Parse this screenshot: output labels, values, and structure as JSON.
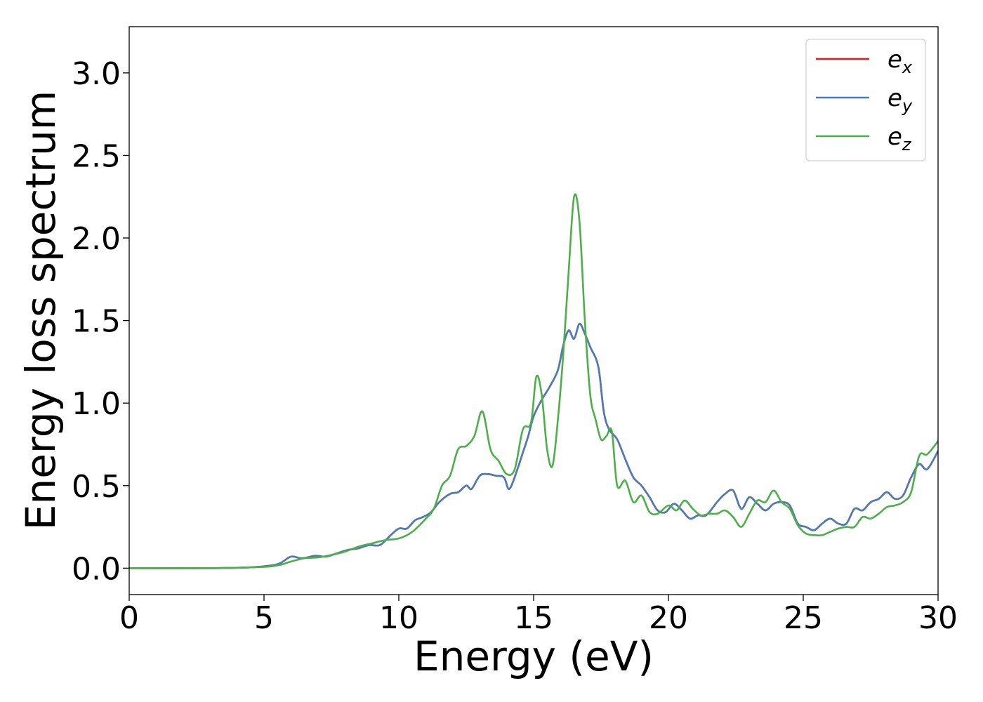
{
  "chart_data": {
    "type": "line",
    "title": "",
    "xlabel": "Energy (eV)",
    "ylabel": "Energy loss spectrum",
    "xlim": [
      0,
      30
    ],
    "ylim": [
      -0.16,
      3.28
    ],
    "xticks": [
      0,
      5,
      10,
      15,
      20,
      25,
      30
    ],
    "xtick_labels": [
      "0",
      "5",
      "10",
      "15",
      "20",
      "25",
      "30"
    ],
    "yticks": [
      0.0,
      0.5,
      1.0,
      1.5,
      2.0,
      2.5,
      3.0
    ],
    "ytick_labels": [
      "0.0",
      "0.5",
      "1.0",
      "1.5",
      "2.0",
      "2.5",
      "3.0"
    ],
    "grid": false,
    "legend": {
      "position": "top-right"
    },
    "series": [
      {
        "name": "e",
        "subscript": "x",
        "color": "#e41a1c",
        "x": [
          0,
          3,
          4.5,
          5.2,
          5.6,
          6.0,
          6.4,
          6.9,
          7.3,
          7.7,
          8.1,
          8.5,
          8.9,
          9.3,
          9.7,
          10.0,
          10.3,
          10.6,
          10.9,
          11.2,
          11.5,
          11.9,
          12.2,
          12.5,
          12.7,
          13.0,
          13.3,
          13.6,
          13.9,
          14.1,
          14.4,
          14.6,
          14.8,
          15.0,
          15.3,
          15.6,
          15.9,
          16.1,
          16.3,
          16.5,
          16.7,
          16.9,
          17.1,
          17.4,
          17.6,
          17.8,
          18.1,
          18.4,
          18.7,
          19.0,
          19.3,
          19.6,
          19.9,
          20.2,
          20.5,
          20.8,
          21.1,
          21.4,
          21.8,
          22.1,
          22.4,
          22.7,
          23.0,
          23.3,
          23.6,
          23.9,
          24.2,
          24.5,
          24.8,
          25.1,
          25.4,
          25.7,
          26.0,
          26.3,
          26.6,
          26.9,
          27.2,
          27.5,
          27.8,
          28.1,
          28.4,
          28.7,
          29.0,
          29.3,
          29.6,
          30.0
        ],
        "y": [
          0.0,
          0.0,
          0.005,
          0.015,
          0.03,
          0.07,
          0.06,
          0.075,
          0.07,
          0.09,
          0.11,
          0.12,
          0.14,
          0.14,
          0.2,
          0.24,
          0.24,
          0.29,
          0.31,
          0.34,
          0.4,
          0.45,
          0.46,
          0.5,
          0.48,
          0.56,
          0.57,
          0.56,
          0.55,
          0.48,
          0.6,
          0.7,
          0.8,
          0.92,
          1.02,
          1.1,
          1.2,
          1.35,
          1.44,
          1.39,
          1.48,
          1.42,
          1.34,
          1.22,
          0.95,
          0.84,
          0.78,
          0.66,
          0.55,
          0.5,
          0.43,
          0.35,
          0.34,
          0.39,
          0.35,
          0.3,
          0.32,
          0.32,
          0.4,
          0.45,
          0.47,
          0.36,
          0.43,
          0.39,
          0.35,
          0.39,
          0.4,
          0.38,
          0.27,
          0.25,
          0.23,
          0.27,
          0.3,
          0.27,
          0.27,
          0.36,
          0.35,
          0.4,
          0.42,
          0.46,
          0.42,
          0.44,
          0.55,
          0.63,
          0.6,
          0.71
        ]
      },
      {
        "name": "e",
        "subscript": "y",
        "color": "#4a7db8",
        "x": [
          0,
          3,
          4.5,
          5.2,
          5.6,
          6.0,
          6.4,
          6.9,
          7.3,
          7.7,
          8.1,
          8.5,
          8.9,
          9.3,
          9.7,
          10.0,
          10.3,
          10.6,
          10.9,
          11.2,
          11.5,
          11.9,
          12.2,
          12.5,
          12.7,
          13.0,
          13.3,
          13.6,
          13.9,
          14.1,
          14.4,
          14.6,
          14.8,
          15.0,
          15.3,
          15.6,
          15.9,
          16.1,
          16.3,
          16.5,
          16.7,
          16.9,
          17.1,
          17.4,
          17.6,
          17.8,
          18.1,
          18.4,
          18.7,
          19.0,
          19.3,
          19.6,
          19.9,
          20.2,
          20.5,
          20.8,
          21.1,
          21.4,
          21.8,
          22.1,
          22.4,
          22.7,
          23.0,
          23.3,
          23.6,
          23.9,
          24.2,
          24.5,
          24.8,
          25.1,
          25.4,
          25.7,
          26.0,
          26.3,
          26.6,
          26.9,
          27.2,
          27.5,
          27.8,
          28.1,
          28.4,
          28.7,
          29.0,
          29.3,
          29.6,
          30.0
        ],
        "y": [
          0.0,
          0.0,
          0.005,
          0.015,
          0.03,
          0.07,
          0.06,
          0.075,
          0.07,
          0.09,
          0.11,
          0.12,
          0.14,
          0.14,
          0.2,
          0.24,
          0.24,
          0.29,
          0.31,
          0.34,
          0.4,
          0.45,
          0.46,
          0.5,
          0.48,
          0.56,
          0.57,
          0.56,
          0.55,
          0.48,
          0.6,
          0.7,
          0.8,
          0.92,
          1.02,
          1.1,
          1.2,
          1.35,
          1.44,
          1.39,
          1.48,
          1.42,
          1.34,
          1.22,
          0.95,
          0.84,
          0.78,
          0.66,
          0.55,
          0.5,
          0.43,
          0.35,
          0.34,
          0.39,
          0.35,
          0.3,
          0.32,
          0.32,
          0.4,
          0.45,
          0.47,
          0.36,
          0.43,
          0.39,
          0.35,
          0.39,
          0.4,
          0.38,
          0.27,
          0.25,
          0.23,
          0.27,
          0.3,
          0.27,
          0.27,
          0.36,
          0.35,
          0.4,
          0.42,
          0.46,
          0.42,
          0.44,
          0.55,
          0.63,
          0.6,
          0.71
        ]
      },
      {
        "name": "e",
        "subscript": "z",
        "color": "#4daf4a",
        "x": [
          0,
          3,
          4.5,
          5.2,
          5.6,
          6.0,
          6.5,
          7.0,
          7.5,
          8.0,
          8.5,
          9.0,
          9.5,
          10.0,
          10.5,
          11.0,
          11.3,
          11.6,
          11.9,
          12.2,
          12.5,
          12.8,
          13.1,
          13.4,
          13.7,
          14.0,
          14.3,
          14.6,
          14.9,
          15.1,
          15.3,
          15.5,
          15.7,
          15.9,
          16.1,
          16.3,
          16.5,
          16.7,
          16.9,
          17.1,
          17.3,
          17.5,
          17.7,
          17.9,
          18.1,
          18.4,
          18.7,
          19.0,
          19.3,
          19.6,
          20.0,
          20.3,
          20.6,
          20.9,
          21.2,
          21.5,
          21.8,
          22.1,
          22.4,
          22.7,
          23.0,
          23.3,
          23.6,
          23.9,
          24.2,
          24.5,
          24.8,
          25.1,
          25.4,
          25.7,
          26.0,
          26.3,
          26.6,
          26.9,
          27.2,
          27.5,
          27.8,
          28.1,
          28.4,
          28.7,
          29.0,
          29.3,
          29.6,
          30.0
        ],
        "y": [
          0.0,
          0.0,
          0.005,
          0.01,
          0.02,
          0.04,
          0.06,
          0.065,
          0.08,
          0.1,
          0.13,
          0.15,
          0.17,
          0.18,
          0.22,
          0.3,
          0.36,
          0.5,
          0.56,
          0.72,
          0.74,
          0.8,
          0.95,
          0.72,
          0.65,
          0.57,
          0.6,
          0.84,
          0.88,
          1.16,
          1.05,
          0.72,
          0.62,
          0.9,
          1.3,
          1.8,
          2.25,
          2.1,
          1.5,
          1.05,
          0.9,
          0.78,
          0.8,
          0.83,
          0.5,
          0.53,
          0.4,
          0.44,
          0.34,
          0.33,
          0.38,
          0.35,
          0.41,
          0.36,
          0.32,
          0.33,
          0.33,
          0.35,
          0.31,
          0.25,
          0.33,
          0.41,
          0.4,
          0.47,
          0.4,
          0.36,
          0.26,
          0.21,
          0.2,
          0.2,
          0.22,
          0.24,
          0.25,
          0.25,
          0.31,
          0.3,
          0.33,
          0.37,
          0.38,
          0.4,
          0.46,
          0.68,
          0.69,
          0.77
        ]
      }
    ]
  }
}
